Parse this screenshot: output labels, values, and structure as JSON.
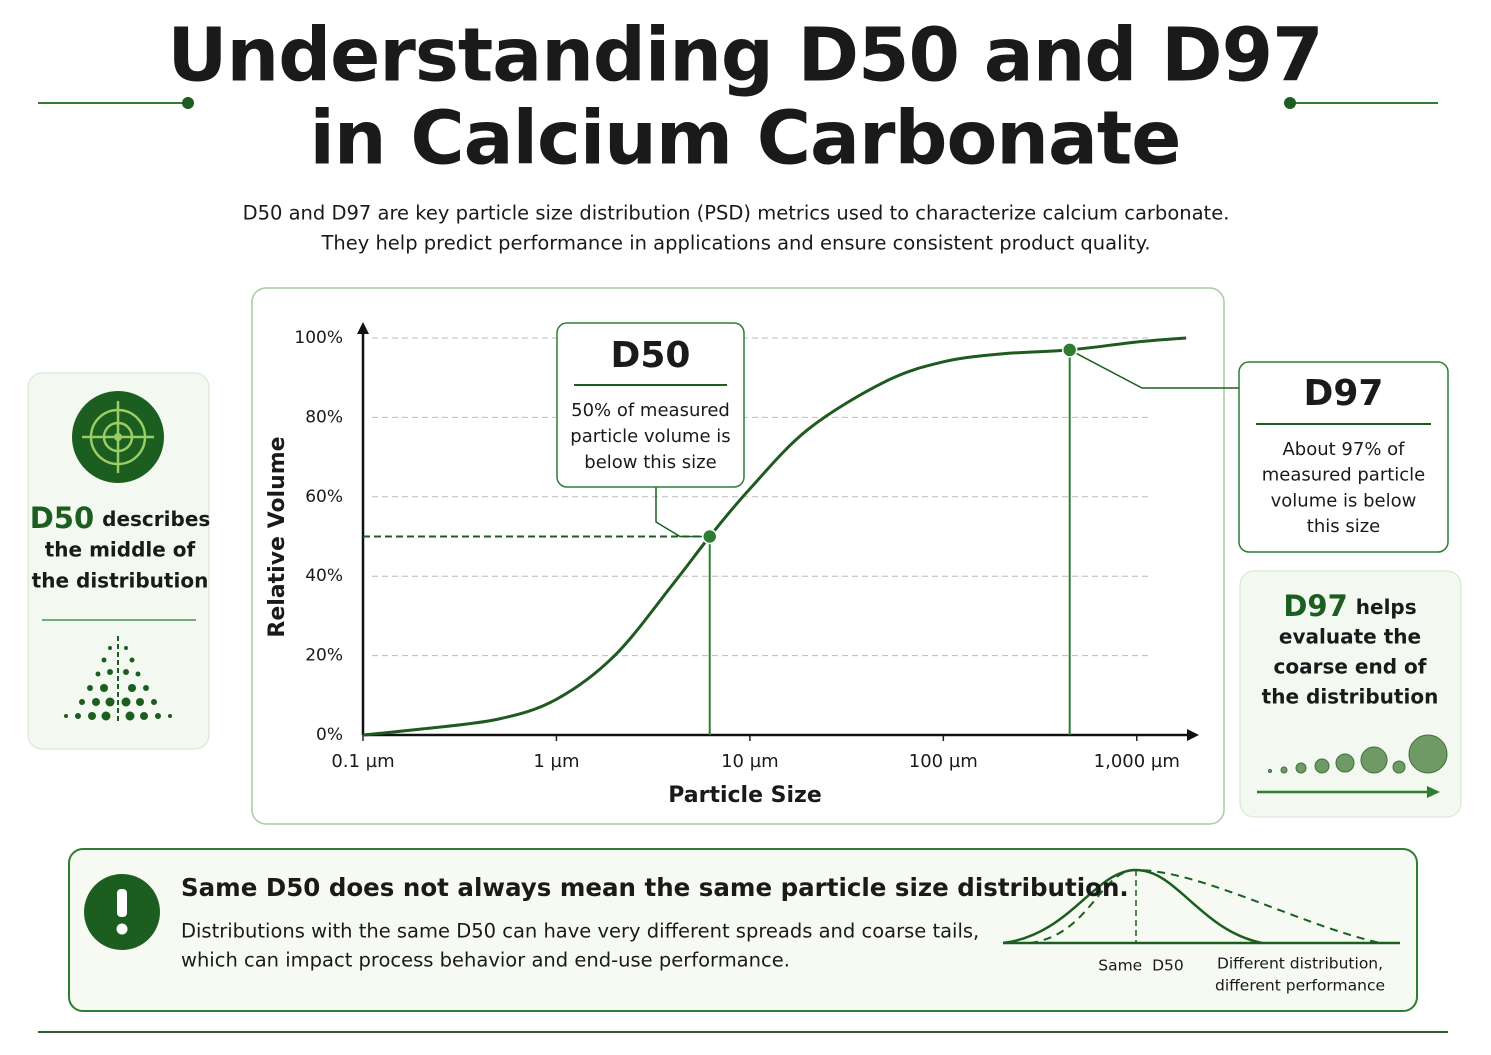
{
  "header": {
    "title_lines": [
      "Understanding D50 and D97",
      "in Calcium Carbonate"
    ],
    "description_lines": [
      "D50 and D97 are key particle size distribution (PSD) metrics used to characterize calcium carbonate.",
      "They help predict performance in applications and ensure consistent product quality."
    ]
  },
  "chart_data": {
    "type": "line",
    "x_label": "Particle Size",
    "y_label": "Relative Volume",
    "x_log": true,
    "xlim": [
      0.1,
      2000
    ],
    "xticks": [
      {
        "value": 0.1,
        "label": "0.1 µm"
      },
      {
        "value": 1,
        "label": "1 µm"
      },
      {
        "value": 10,
        "label": "10 µm"
      },
      {
        "value": 100,
        "label": "100 µm"
      },
      {
        "value": 1000,
        "label": "1,000 µm"
      }
    ],
    "ylim": [
      0,
      100
    ],
    "yticks": [
      {
        "value": 0,
        "label": "0%"
      },
      {
        "value": 20,
        "label": "20%"
      },
      {
        "value": 40,
        "label": "40%"
      },
      {
        "value": 60,
        "label": "60%"
      },
      {
        "value": 80,
        "label": "80%"
      },
      {
        "value": 100,
        "label": "100%"
      }
    ],
    "grid": true,
    "series": [
      {
        "color": "#1f5a1f",
        "x": [
          0.1,
          0.2,
          0.5,
          1,
          2,
          4,
          6.2,
          10,
          20,
          50,
          100,
          200,
          450,
          1000,
          1800
        ],
        "values": [
          0,
          1.5,
          4,
          9,
          20,
          38,
          50,
          62,
          77,
          89,
          94,
          96,
          97,
          99,
          100
        ]
      }
    ],
    "markers": [
      {
        "name": "D50",
        "x": 6.2,
        "y": 50,
        "text_lines": [
          "50% of measured",
          "particle volume is",
          "below this size"
        ]
      },
      {
        "name": "D97",
        "x": 450,
        "y": 97,
        "text_lines": [
          "About 97% of",
          "measured particle",
          "volume is below",
          "this size"
        ]
      }
    ]
  },
  "side_cards": [
    {
      "highlight": "D50",
      "lines": [
        "describes",
        "the middle of",
        "the distribution"
      ]
    },
    {
      "highlight": "D97",
      "lines": [
        "helps",
        "evaluate the",
        "coarse end of",
        "the distribution"
      ]
    }
  ],
  "note": {
    "title": "Same D50 does not always mean the same particle size distribution.",
    "body_lines": [
      "Distributions with the same D50 can have very different spreads and coarse tails,",
      "which can impact process behavior and end-use performance."
    ],
    "diagram_label": "Same  D50",
    "diagram_caption_lines": [
      "Different distribution,",
      "different performance"
    ]
  }
}
